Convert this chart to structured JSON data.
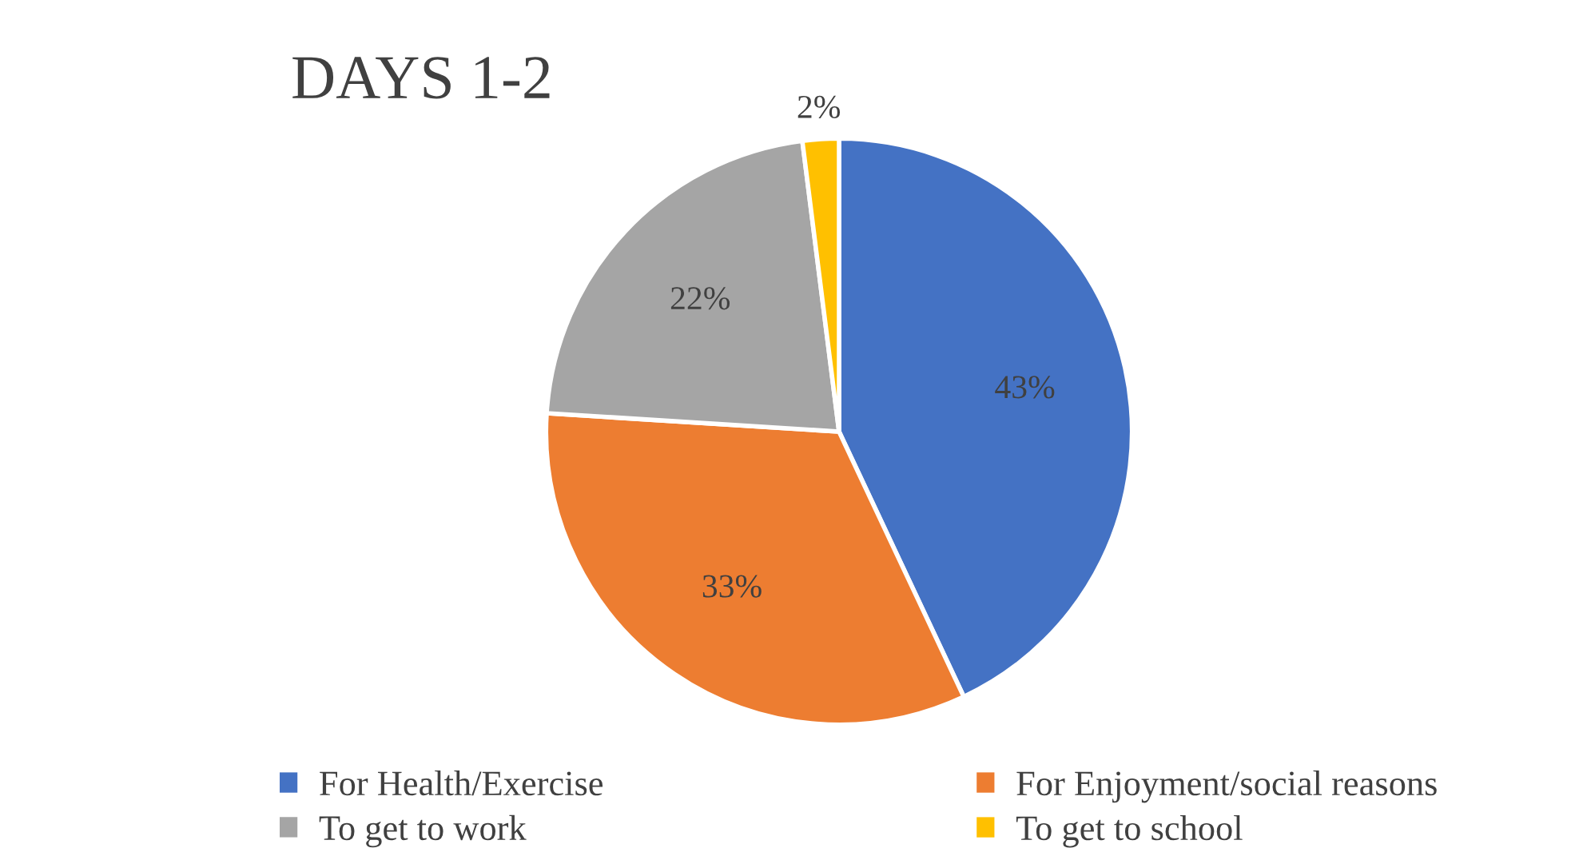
{
  "chart_data": {
    "type": "pie",
    "title": "DAYS 1-2",
    "categories": [
      "For Health/Exercise",
      "For Enjoyment/social reasons",
      "To get to work",
      "To get to school"
    ],
    "values": [
      43,
      33,
      22,
      2
    ],
    "colors": [
      "#4472c4",
      "#ed7d31",
      "#a5a5a5",
      "#ffc000"
    ],
    "value_labels": [
      "43%",
      "33%",
      "22%",
      "2%"
    ],
    "legend": "bottom"
  }
}
